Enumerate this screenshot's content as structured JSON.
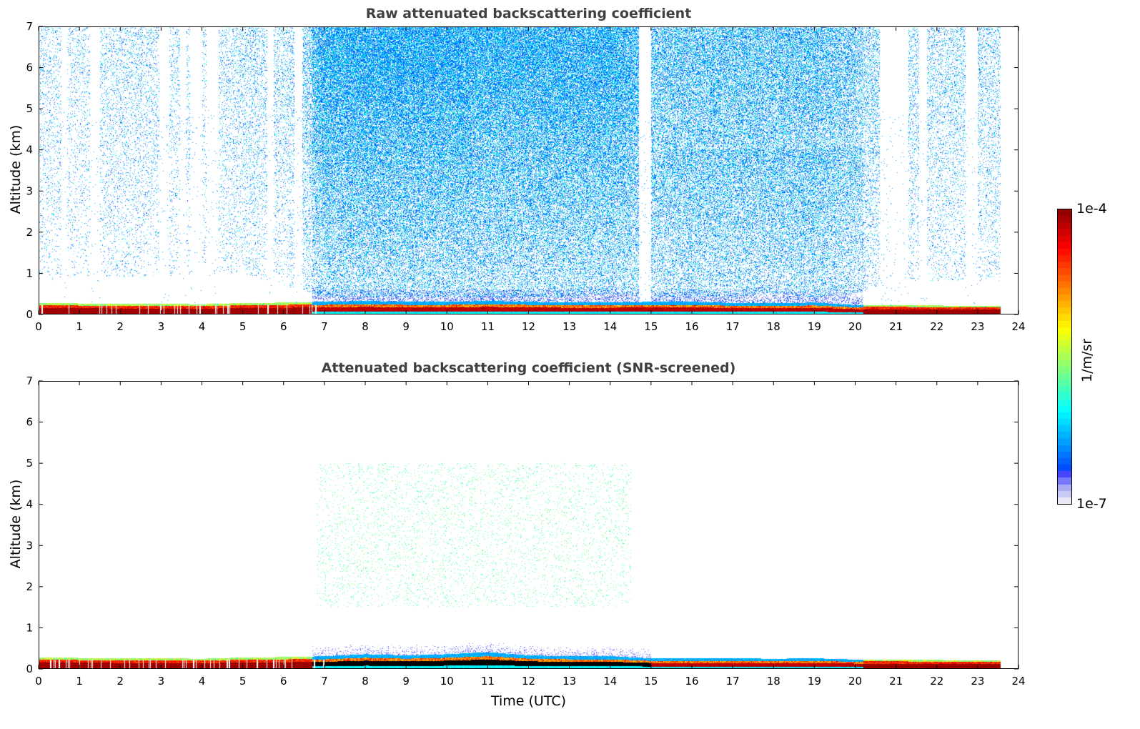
{
  "chart_data": [
    {
      "type": "heatmap",
      "title": "Raw attenuated backscattering coefficient",
      "xlabel": "",
      "ylabel": "Altitude (km)",
      "xlim": [
        0,
        24
      ],
      "ylim": [
        0,
        7
      ],
      "xticks": [
        "0",
        "1",
        "2",
        "3",
        "4",
        "5",
        "6",
        "7",
        "8",
        "9",
        "10",
        "11",
        "12",
        "13",
        "14",
        "15",
        "16",
        "17",
        "18",
        "19",
        "20",
        "21",
        "22",
        "23",
        "24"
      ],
      "yticks": [
        "0",
        "1",
        "2",
        "3",
        "4",
        "5",
        "6",
        "7"
      ],
      "data_end_hour": 23.55,
      "hourly_boundary_layer_top_km": [
        0.27,
        0.26,
        0.25,
        0.25,
        0.24,
        0.27,
        0.28,
        0.3,
        0.32,
        0.3,
        0.3,
        0.32,
        0.3,
        0.28,
        0.28,
        0.3,
        0.3,
        0.27,
        0.27,
        0.28,
        0.22,
        0.22,
        0.21,
        0.2
      ],
      "hourly_upper_signal_density": [
        0.25,
        0.2,
        0.3,
        0.25,
        0.2,
        0.35,
        0.3,
        0.85,
        0.9,
        0.9,
        0.9,
        0.85,
        0.85,
        0.85,
        0.85,
        0.7,
        0.75,
        0.75,
        0.75,
        0.8,
        0.6,
        0.4,
        0.35,
        0.35
      ],
      "hourly_upper_signal_bottom_km": [
        0.8,
        0.9,
        0.9,
        0.9,
        1.0,
        1.0,
        0.7,
        0.4,
        0.4,
        0.4,
        0.4,
        0.4,
        0.4,
        0.4,
        0.5,
        0.4,
        0.4,
        0.4,
        0.5,
        0.4,
        0.5,
        0.8,
        0.8,
        0.8
      ],
      "no_signal_intervals_hours": [
        [
          0.55,
          0.7
        ],
        [
          1.25,
          1.5
        ],
        [
          2.95,
          3.2
        ],
        [
          3.45,
          3.6
        ],
        [
          3.7,
          4.0
        ],
        [
          4.1,
          4.4
        ],
        [
          5.6,
          5.75
        ],
        [
          6.25,
          6.45
        ],
        [
          14.7,
          15.0
        ],
        [
          20.6,
          21.3
        ],
        [
          21.55,
          21.75
        ],
        [
          22.7,
          23.0
        ]
      ],
      "colorbar": {
        "min": "1e-7",
        "max": "1e-4",
        "label": "1/m/sr",
        "scale": "log"
      }
    },
    {
      "type": "heatmap",
      "title": "Attenuated backscattering coefficient (SNR-screened)",
      "xlabel": "Time (UTC)",
      "ylabel": "Altitude (km)",
      "xlim": [
        0,
        24
      ],
      "ylim": [
        0,
        7
      ],
      "xticks": [
        "0",
        "1",
        "2",
        "3",
        "4",
        "5",
        "6",
        "7",
        "8",
        "9",
        "10",
        "11",
        "12",
        "13",
        "14",
        "15",
        "16",
        "17",
        "18",
        "19",
        "20",
        "21",
        "22",
        "23",
        "24"
      ],
      "yticks": [
        "0",
        "1",
        "2",
        "3",
        "4",
        "5",
        "6",
        "7"
      ],
      "data_end_hour": 23.55,
      "aerosol_layer_extent": {
        "hours": [
          6.8,
          14.5
        ],
        "altitude_km": [
          1.5,
          5.0
        ]
      },
      "hourly_boundary_layer_top_km": [
        0.27,
        0.26,
        0.25,
        0.25,
        0.24,
        0.27,
        0.28,
        0.3,
        0.35,
        0.32,
        0.35,
        0.4,
        0.32,
        0.3,
        0.3,
        0.25,
        0.25,
        0.25,
        0.24,
        0.25,
        0.22,
        0.22,
        0.21,
        0.2
      ]
    }
  ],
  "colors": {
    "title": "#404040",
    "low": "#e8e8f8"
  }
}
